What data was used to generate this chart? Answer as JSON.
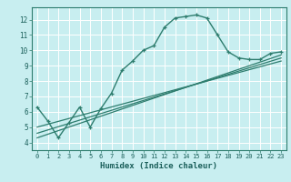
{
  "title": "",
  "xlabel": "Humidex (Indice chaleur)",
  "ylabel": "",
  "background_color": "#c8eef0",
  "grid_color": "#ffffff",
  "line_color": "#2e7d6e",
  "xlim": [
    -0.5,
    23.5
  ],
  "ylim": [
    3.5,
    12.8
  ],
  "xticks": [
    0,
    1,
    2,
    3,
    4,
    5,
    6,
    7,
    8,
    9,
    10,
    11,
    12,
    13,
    14,
    15,
    16,
    17,
    18,
    19,
    20,
    21,
    22,
    23
  ],
  "yticks": [
    4,
    5,
    6,
    7,
    8,
    9,
    10,
    11,
    12
  ],
  "curve1_x": [
    0,
    1,
    2,
    3,
    4,
    5,
    6,
    7,
    8,
    9,
    10,
    11,
    12,
    13,
    14,
    15,
    16,
    17,
    18,
    19,
    20,
    21,
    22,
    23
  ],
  "curve1_y": [
    6.3,
    5.4,
    4.3,
    5.3,
    6.3,
    5.0,
    6.2,
    7.2,
    8.7,
    9.3,
    10.0,
    10.3,
    11.5,
    12.1,
    12.2,
    12.3,
    12.1,
    11.0,
    9.9,
    9.5,
    9.4,
    9.4,
    9.8,
    9.9
  ],
  "curve2_x": [
    0,
    23
  ],
  "curve2_y": [
    4.3,
    9.7
  ],
  "curve3_x": [
    0,
    23
  ],
  "curve3_y": [
    4.6,
    9.5
  ],
  "curve4_x": [
    0,
    23
  ],
  "curve4_y": [
    5.0,
    9.3
  ]
}
